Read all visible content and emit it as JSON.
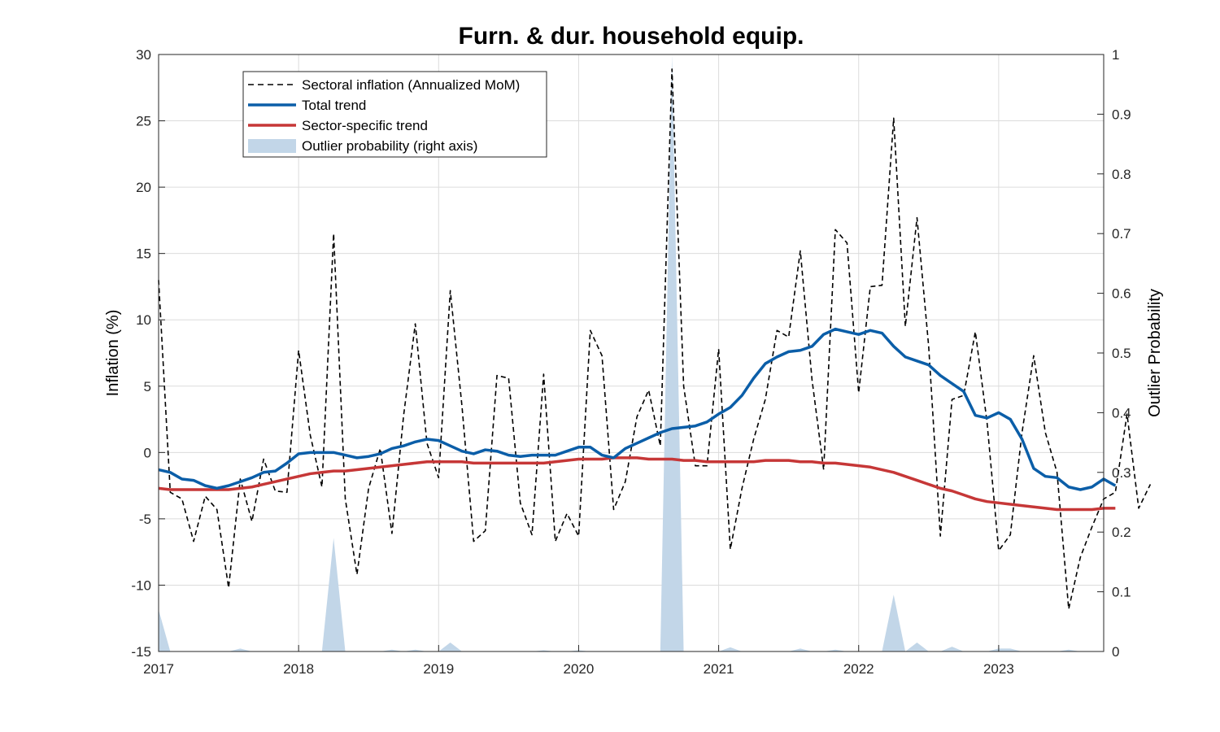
{
  "chart_data": {
    "type": "line",
    "title": "Furn. & dur. household equip.",
    "ylabel": "Inflation (%)",
    "y2label": "Outlier Probability",
    "xlim": [
      2017.0,
      2023.75
    ],
    "ylim": [
      -15,
      30
    ],
    "y2lim": [
      0,
      1
    ],
    "xticks": [
      2017,
      2018,
      2019,
      2020,
      2021,
      2022,
      2023
    ],
    "xtick_labels": [
      "2017",
      "2018",
      "2019",
      "2020",
      "2021",
      "2022",
      "2023"
    ],
    "yticks": [
      -15,
      -10,
      -5,
      0,
      5,
      10,
      15,
      20,
      25,
      30
    ],
    "ytick_labels": [
      "-15",
      "-10",
      "-5",
      "0",
      "5",
      "10",
      "15",
      "20",
      "25",
      "30"
    ],
    "y2ticks": [
      0,
      0.1,
      0.2,
      0.3,
      0.4,
      0.5,
      0.6,
      0.7,
      0.8,
      0.9,
      1
    ],
    "y2tick_labels": [
      "0",
      "0.1",
      "0.2",
      "0.3",
      "0.4",
      "0.5",
      "0.6",
      "0.7",
      "0.8",
      "0.9",
      "1"
    ],
    "grid": true,
    "legend_position": "top-left",
    "series": [
      {
        "name": "Sectoral inflation (Annualized MoM)",
        "style": "dashed",
        "color": "#000000",
        "values": [
          13.0,
          -3.0,
          -3.5,
          -6.7,
          -3.3,
          -4.3,
          -10.2,
          -2.0,
          -5.2,
          -0.5,
          -2.9,
          -3.0,
          7.7,
          1.3,
          -2.6,
          16.5,
          -3.5,
          -9.2,
          -2.7,
          0.3,
          -6.1,
          2.8,
          9.7,
          0.7,
          -1.9,
          12.2,
          3.5,
          -6.7,
          -5.9,
          5.8,
          5.6,
          -3.8,
          -6.2,
          5.9,
          -6.7,
          -4.6,
          -6.3,
          9.2,
          7.3,
          -4.3,
          -2.2,
          2.7,
          4.7,
          0.5,
          28.9,
          5.0,
          -1.0,
          -1.0,
          7.8,
          -7.3,
          -2.7,
          1.0,
          4.0,
          9.2,
          8.7,
          15.2,
          5.5,
          -1.3,
          16.8,
          15.8,
          4.5,
          12.5,
          12.6,
          25.2,
          9.5,
          17.7,
          8.0,
          -6.3,
          4.0,
          4.3,
          9.1,
          2.3,
          -7.4,
          -6.2,
          1.5,
          7.3,
          1.5,
          -1.5,
          -11.8,
          -7.9,
          -5.6,
          -3.5,
          -3.0,
          2.9,
          -4.2,
          -2.4
        ]
      },
      {
        "name": "Total trend",
        "style": "solid",
        "color": "#0b5ea8",
        "values": [
          -1.3,
          -1.5,
          -2.0,
          -2.1,
          -2.5,
          -2.7,
          -2.5,
          -2.2,
          -1.9,
          -1.5,
          -1.4,
          -0.8,
          -0.1,
          0.0,
          0.0,
          0.0,
          -0.2,
          -0.4,
          -0.3,
          -0.1,
          0.3,
          0.5,
          0.8,
          1.0,
          0.9,
          0.5,
          0.1,
          -0.1,
          0.2,
          0.1,
          -0.2,
          -0.3,
          -0.2,
          -0.2,
          -0.2,
          0.1,
          0.4,
          0.4,
          -0.2,
          -0.4,
          0.3,
          0.7,
          1.1,
          1.5,
          1.8,
          1.9,
          2.0,
          2.3,
          2.9,
          3.4,
          4.3,
          5.6,
          6.7,
          7.2,
          7.6,
          7.7,
          8.0,
          8.9,
          9.3,
          9.1,
          8.9,
          9.2,
          9.0,
          8.0,
          7.2,
          6.9,
          6.6,
          5.8,
          5.2,
          4.6,
          2.8,
          2.6,
          3.0,
          2.5,
          1.0,
          -1.2,
          -1.8,
          -1.9,
          -2.6,
          -2.8,
          -2.6,
          -2.0,
          -2.5
        ]
      },
      {
        "name": "Sector-specific trend",
        "style": "solid",
        "color": "#c63737",
        "values": [
          -2.7,
          -2.8,
          -2.8,
          -2.8,
          -2.8,
          -2.8,
          -2.8,
          -2.7,
          -2.6,
          -2.4,
          -2.2,
          -2.0,
          -1.8,
          -1.6,
          -1.5,
          -1.4,
          -1.4,
          -1.3,
          -1.2,
          -1.1,
          -1.0,
          -0.9,
          -0.8,
          -0.7,
          -0.7,
          -0.7,
          -0.7,
          -0.8,
          -0.8,
          -0.8,
          -0.8,
          -0.8,
          -0.8,
          -0.8,
          -0.7,
          -0.6,
          -0.5,
          -0.5,
          -0.5,
          -0.4,
          -0.4,
          -0.4,
          -0.5,
          -0.5,
          -0.5,
          -0.6,
          -0.6,
          -0.7,
          -0.7,
          -0.7,
          -0.7,
          -0.7,
          -0.6,
          -0.6,
          -0.6,
          -0.7,
          -0.7,
          -0.8,
          -0.8,
          -0.9,
          -1.0,
          -1.1,
          -1.3,
          -1.5,
          -1.8,
          -2.1,
          -2.4,
          -2.7,
          -2.9,
          -3.2,
          -3.5,
          -3.7,
          -3.8,
          -3.9,
          -4.0,
          -4.1,
          -4.2,
          -4.3,
          -4.3,
          -4.3,
          -4.3,
          -4.2,
          -4.2
        ]
      },
      {
        "name": "Outlier probability (right axis)",
        "style": "area",
        "axis": "right",
        "color": "#c2d6e8",
        "values": [
          0.07,
          0.0,
          0.0,
          0.0,
          0.0,
          0.0,
          0.0,
          0.005,
          0.0,
          0.0,
          0.0,
          0.0,
          0.0,
          0.0,
          0.0,
          0.19,
          0.0,
          0.0,
          0.0,
          0.0,
          0.003,
          0.0,
          0.003,
          0.0,
          0.0,
          0.015,
          0.0,
          0.0,
          0.0,
          0.0,
          0.0,
          0.0,
          0.0,
          0.002,
          0.0,
          0.0,
          0.002,
          0.0,
          0.0,
          0.0,
          0.0,
          0.0,
          0.0,
          0.0,
          1.0,
          0.0,
          0.0,
          0.0,
          0.0,
          0.007,
          0.0,
          0.0,
          0.0,
          0.0,
          0.0,
          0.005,
          0.0,
          0.0,
          0.003,
          0.0,
          0.0,
          0.0,
          0.0,
          0.095,
          0.0,
          0.015,
          0.0,
          0.0,
          0.008,
          0.0,
          0.0,
          0.0,
          0.005,
          0.005,
          0.0,
          0.0,
          0.0,
          0.0,
          0.003,
          0.0,
          0.0,
          0.0,
          0.0
        ]
      }
    ]
  }
}
